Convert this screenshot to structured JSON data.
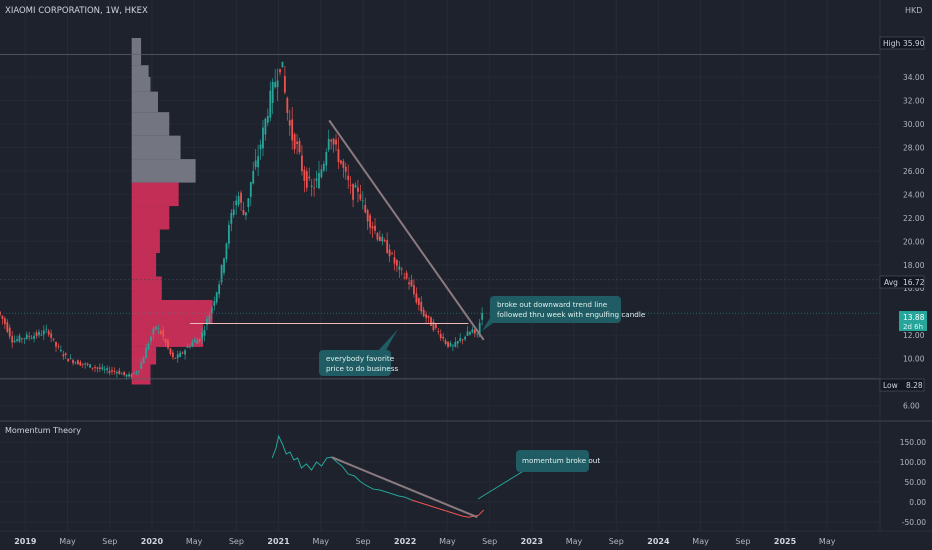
{
  "header": {
    "symbol_title": "XIAOMI CORPORATION, 1W, HKEX",
    "currency": "HKD"
  },
  "colors": {
    "background": "#1e222d",
    "up": "#26a69a",
    "down": "#ef5350",
    "volume_profile_gray": "#787b86",
    "volume_profile_red": "#cc2f5a",
    "trendline": "#8a7a80",
    "support_line": "#f0b8b8",
    "callout": "#1f5c63"
  },
  "price_axis": {
    "ticks": [
      "34.00",
      "32.00",
      "30.00",
      "28.00",
      "26.00",
      "24.00",
      "22.00",
      "20.00",
      "18.00",
      "16.00",
      "12.00",
      "10.00",
      "6.00"
    ],
    "high_label": "High",
    "high_value": "35.90",
    "avg_label": "Avg",
    "avg_value": "16.72",
    "last_value": "13.88",
    "last_countdown": "2d 6h",
    "low_label": "Low",
    "low_value": "8.28"
  },
  "momentum_axis": {
    "ticks": [
      "150.00",
      "100.00",
      "50.00",
      "0.00",
      "-50.00"
    ]
  },
  "time_axis": {
    "ticks": [
      "2019",
      "May",
      "Sep",
      "2020",
      "May",
      "Sep",
      "2021",
      "May",
      "Sep",
      "2022",
      "May",
      "Sep",
      "2023",
      "May",
      "Sep",
      "2024",
      "May",
      "Sep",
      "2025",
      "May"
    ]
  },
  "annotations": {
    "breakout_note_line1": "broke out downward trend line",
    "breakout_note_line2": "followed thru week with engulfing candle",
    "favorite_price_line1": "everybody favorite",
    "favorite_price_line2": "price to do business",
    "momentum_note": "momentum broke out"
  },
  "indicator": {
    "name": "Momentum Theory"
  },
  "chart_data": [
    {
      "type": "candlestick",
      "title": "XIAOMI CORPORATION, 1W, HKEX",
      "ylabel": "HKD",
      "ylim": [
        5.2,
        38.0
      ],
      "xlim": [
        2018.8,
        2025.75
      ],
      "price_path": [
        [
          2018.8,
          14.0
        ],
        [
          2018.85,
          13.2
        ],
        [
          2018.92,
          11.5
        ],
        [
          2019.0,
          11.8
        ],
        [
          2019.1,
          12.0
        ],
        [
          2019.2,
          12.4
        ],
        [
          2019.25,
          11.2
        ],
        [
          2019.35,
          10.0
        ],
        [
          2019.45,
          9.6
        ],
        [
          2019.55,
          9.3
        ],
        [
          2019.65,
          9.0
        ],
        [
          2019.75,
          8.9
        ],
        [
          2019.8,
          8.6
        ],
        [
          2019.85,
          8.5
        ],
        [
          2019.92,
          9.2
        ],
        [
          2020.0,
          11.6
        ],
        [
          2020.05,
          12.8
        ],
        [
          2020.1,
          12.0
        ],
        [
          2020.18,
          10.0
        ],
        [
          2020.23,
          10.2
        ],
        [
          2020.3,
          11.0
        ],
        [
          2020.35,
          11.5
        ],
        [
          2020.4,
          11.7
        ],
        [
          2020.48,
          14.0
        ],
        [
          2020.55,
          16.5
        ],
        [
          2020.6,
          19.5
        ],
        [
          2020.65,
          22.5
        ],
        [
          2020.7,
          24.0
        ],
        [
          2020.75,
          22.0
        ],
        [
          2020.8,
          25.0
        ],
        [
          2020.85,
          27.0
        ],
        [
          2020.9,
          29.5
        ],
        [
          2020.95,
          32.0
        ],
        [
          2021.0,
          34.0
        ],
        [
          2021.04,
          35.5
        ],
        [
          2021.08,
          31.5
        ],
        [
          2021.12,
          29.0
        ],
        [
          2021.16,
          28.2
        ],
        [
          2021.22,
          25.5
        ],
        [
          2021.28,
          24.5
        ],
        [
          2021.33,
          25.2
        ],
        [
          2021.38,
          27.0
        ],
        [
          2021.42,
          29.5
        ],
        [
          2021.46,
          28.0
        ],
        [
          2021.5,
          27.0
        ],
        [
          2021.55,
          25.5
        ],
        [
          2021.6,
          24.0
        ],
        [
          2021.65,
          24.5
        ],
        [
          2021.7,
          22.5
        ],
        [
          2021.75,
          21.5
        ],
        [
          2021.8,
          20.5
        ],
        [
          2021.85,
          19.8
        ],
        [
          2021.9,
          19.0
        ],
        [
          2021.95,
          17.8
        ],
        [
          2022.0,
          17.2
        ],
        [
          2022.05,
          16.5
        ],
        [
          2022.1,
          15.2
        ],
        [
          2022.15,
          14.0
        ],
        [
          2022.2,
          13.3
        ],
        [
          2022.25,
          12.6
        ],
        [
          2022.3,
          12.0
        ],
        [
          2022.35,
          11.2
        ],
        [
          2022.4,
          11.0
        ],
        [
          2022.45,
          11.6
        ],
        [
          2022.5,
          12.0
        ],
        [
          2022.55,
          12.4
        ],
        [
          2022.58,
          11.6
        ],
        [
          2022.62,
          13.88
        ]
      ],
      "high": 35.9,
      "low": 8.28,
      "avg": 16.72,
      "last": 13.88,
      "support_level": 13.0,
      "downtrend_line": [
        [
          2021.4,
          30.3
        ],
        [
          2022.62,
          11.6
        ]
      ],
      "volume_profile": [
        {
          "price": 36.5,
          "width": 0.5,
          "color": "gray"
        },
        {
          "price": 35.5,
          "width": 0.5,
          "color": "gray"
        },
        {
          "price": 34.5,
          "width": 0.9,
          "color": "gray"
        },
        {
          "price": 33.5,
          "width": 1.0,
          "color": "gray"
        },
        {
          "price": 32.0,
          "width": 1.4,
          "color": "gray"
        },
        {
          "price": 30.0,
          "width": 2.0,
          "color": "gray"
        },
        {
          "price": 28.0,
          "width": 2.6,
          "color": "gray"
        },
        {
          "price": 26.0,
          "width": 3.4,
          "color": "gray"
        },
        {
          "price": 24.0,
          "width": 2.5,
          "color": "red"
        },
        {
          "price": 22.0,
          "width": 2.0,
          "color": "red"
        },
        {
          "price": 20.0,
          "width": 1.5,
          "color": "red"
        },
        {
          "price": 18.0,
          "width": 1.3,
          "color": "red"
        },
        {
          "price": 16.0,
          "width": 1.6,
          "color": "red"
        },
        {
          "price": 14.0,
          "width": 4.3,
          "color": "red"
        },
        {
          "price": 12.0,
          "width": 3.8,
          "color": "red"
        },
        {
          "price": 10.0,
          "width": 1.3,
          "color": "red"
        },
        {
          "price": 9.0,
          "width": 1.0,
          "color": "red"
        }
      ]
    },
    {
      "type": "line",
      "title": "Momentum Theory",
      "ylim": [
        -65,
        185
      ],
      "series": [
        {
          "values": [
            [
              2020.95,
              110
            ],
            [
              2020.98,
              135
            ],
            [
              2021.0,
              165
            ],
            [
              2021.03,
              145
            ],
            [
              2021.06,
              120
            ],
            [
              2021.09,
              125
            ],
            [
              2021.12,
              105
            ],
            [
              2021.15,
              110
            ],
            [
              2021.18,
              85
            ],
            [
              2021.22,
              95
            ],
            [
              2021.26,
              80
            ],
            [
              2021.3,
              100
            ],
            [
              2021.34,
              90
            ],
            [
              2021.38,
              110
            ],
            [
              2021.42,
              112
            ],
            [
              2021.46,
              100
            ],
            [
              2021.5,
              90
            ],
            [
              2021.55,
              70
            ],
            [
              2021.6,
              65
            ],
            [
              2021.65,
              50
            ],
            [
              2021.7,
              40
            ],
            [
              2021.75,
              32
            ],
            [
              2021.8,
              30
            ],
            [
              2021.85,
              25
            ],
            [
              2021.9,
              20
            ],
            [
              2021.95,
              15
            ],
            [
              2022.0,
              12
            ],
            [
              2022.05,
              5
            ],
            [
              2022.1,
              0
            ],
            [
              2022.15,
              -5
            ],
            [
              2022.2,
              -10
            ],
            [
              2022.25,
              -15
            ],
            [
              2022.3,
              -20
            ],
            [
              2022.35,
              -25
            ],
            [
              2022.4,
              -30
            ],
            [
              2022.45,
              -35
            ],
            [
              2022.5,
              -38
            ],
            [
              2022.55,
              -35
            ],
            [
              2022.58,
              -33
            ],
            [
              2022.62,
              -20
            ]
          ]
        }
      ],
      "downtrend_line": [
        [
          2021.42,
          112
        ],
        [
          2022.57,
          -38
        ]
      ]
    }
  ]
}
